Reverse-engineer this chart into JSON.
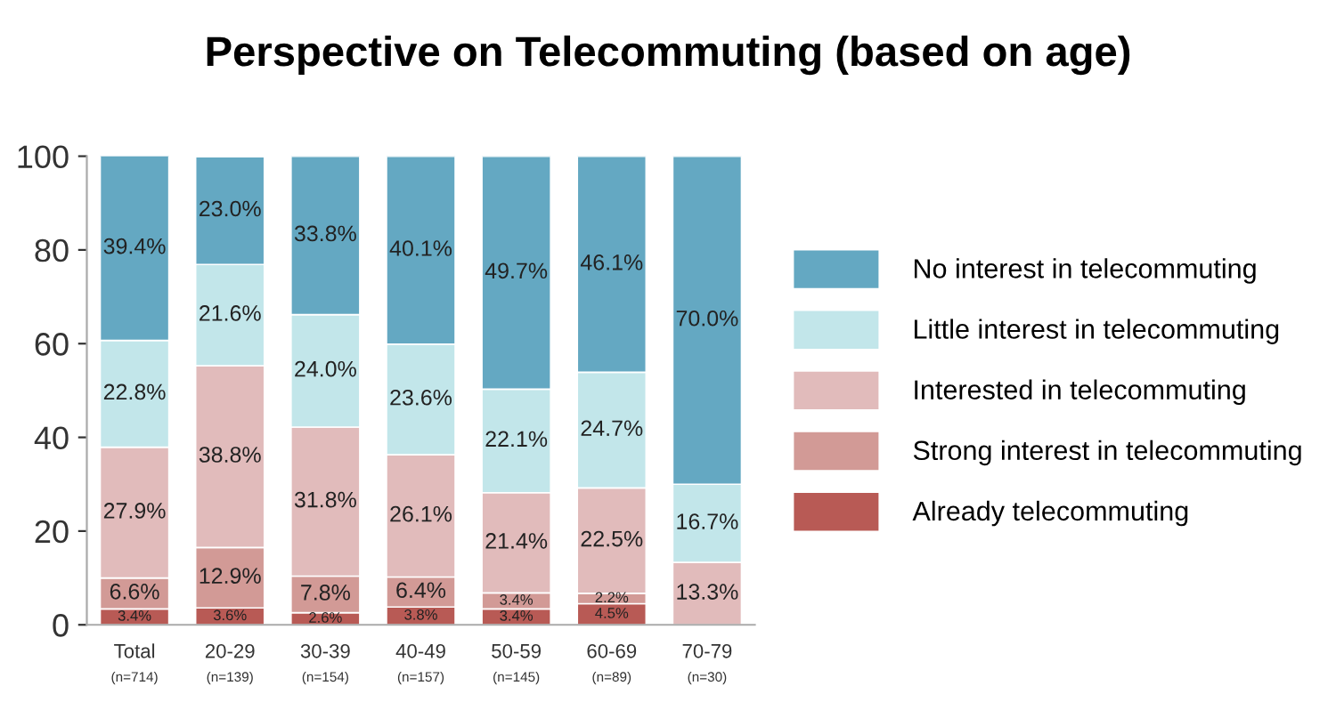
{
  "chart_data": {
    "type": "bar",
    "title": "Perspective on Telecommuting (based on age)",
    "categories": [
      "Total\n(n=714)",
      "20-29\n(n=139)",
      "30-39\n(n=154)",
      "40-49\n(n=157)",
      "50-59\n(n=145)",
      "60-69\n(n=89)",
      "70-79\n(n=30)"
    ],
    "stacked": true,
    "ylim": [
      0,
      100
    ],
    "yticks": [
      0,
      20,
      40,
      60,
      80,
      100
    ],
    "grid": false,
    "legend": "right",
    "series": [
      {
        "name": "Already telecommuting",
        "color": "#b85a55",
        "values": [
          3.4,
          3.6,
          2.6,
          3.8,
          3.4,
          4.5,
          null
        ],
        "value_labels": [
          "3.4%",
          "3.6%",
          "2.6%",
          "3.8%",
          "3.4%",
          "4.5%",
          null
        ]
      },
      {
        "name": "Strong interest in telecommuting",
        "color": "#d29a96",
        "values": [
          6.6,
          12.9,
          7.8,
          6.4,
          3.4,
          2.2,
          null
        ],
        "value_labels": [
          "6.6%",
          "12.9%",
          "7.8%",
          "6.4%",
          "3.4%",
          "2.2%",
          null
        ]
      },
      {
        "name": "Interested in telecommuting",
        "color": "#e1bbbb",
        "values": [
          27.9,
          38.8,
          31.8,
          26.1,
          21.4,
          22.5,
          13.3
        ],
        "value_labels": [
          "27.9%",
          "38.8%",
          "31.8%",
          "26.1%",
          "21.4%",
          "22.5%",
          "13.3%"
        ]
      },
      {
        "name": "Little interest in telecommuting",
        "color": "#c2e6ea",
        "values": [
          22.8,
          21.6,
          24.0,
          23.6,
          22.1,
          24.7,
          16.7
        ],
        "value_labels": [
          "22.8%",
          "21.6%",
          "24.0%",
          "23.6%",
          "22.1%",
          "24.7%",
          "16.7%"
        ]
      },
      {
        "name": "No interest in telecommuting",
        "color": "#64a8c2",
        "values": [
          39.4,
          23.0,
          33.8,
          40.1,
          49.7,
          46.1,
          70.0
        ],
        "value_labels": [
          "39.4%",
          "23.0%",
          "33.8%",
          "40.1%",
          "49.7%",
          "46.1%",
          "70.0%"
        ]
      }
    ]
  }
}
